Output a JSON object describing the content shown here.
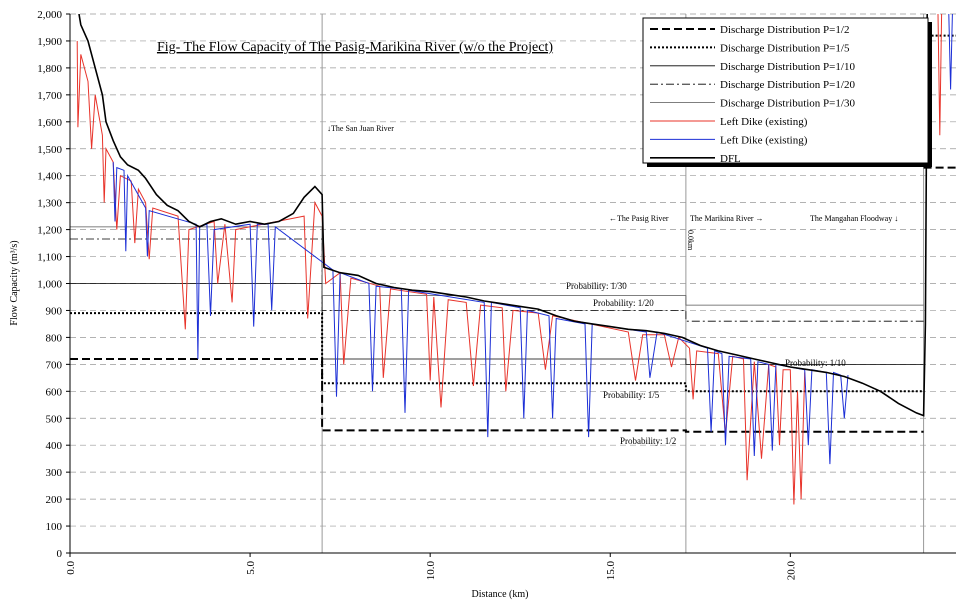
{
  "chart_data": {
    "type": "line",
    "title": "Fig- The Flow Capacity of The Pasig-Marikina River (w/o the Project)",
    "x_label": "Distance (km)",
    "y_label": "Flow Capacity (m³/s)",
    "xlim": [
      0,
      24.6
    ],
    "ylim": [
      0,
      2000
    ],
    "xticks": [
      {
        "value": 0,
        "label": "0.0"
      },
      {
        "value": 5,
        "label": "5.0"
      },
      {
        "value": 10,
        "label": "10.0"
      },
      {
        "value": 15,
        "label": "15.0"
      },
      {
        "value": 20,
        "label": "20.0"
      }
    ],
    "yticks": [
      0,
      100,
      200,
      300,
      400,
      500,
      600,
      700,
      800,
      900,
      {
        "value": 1000,
        "label": "1,000"
      },
      {
        "value": 1100,
        "label": "1,100"
      },
      {
        "value": 1200,
        "label": "1,200"
      },
      {
        "value": 1300,
        "label": "1,300"
      },
      {
        "value": 1400,
        "label": "1,400"
      },
      {
        "value": 1500,
        "label": "1,500"
      },
      {
        "value": 1600,
        "label": "1,600"
      },
      {
        "value": 1700,
        "label": "1,700"
      },
      {
        "value": 1800,
        "label": "1,800"
      },
      {
        "value": 1900,
        "label": "1,900"
      },
      {
        "value": 2000,
        "label": "2,000"
      }
    ],
    "grid": true,
    "vlines": [
      7.0,
      17.1,
      23.7
    ],
    "annotations": [
      "↓The San Juan River",
      "←The Pasig River",
      "The Marikina River →",
      "The Mangahan Floodway ↓",
      "0.0km",
      "Probability: 1/30",
      "Probability: 1/20",
      "Probability: 1/10",
      "Probability: 1/5",
      "Probability: 1/2"
    ],
    "series": [
      {
        "name": "Discharge Distribution P=1/2",
        "color": "#000000",
        "style": "dashed",
        "width": 2,
        "x": [
          0,
          7,
          7,
          17.1,
          17.1,
          23.7,
          23.7,
          23.7,
          24.6
        ],
        "values": [
          720,
          720,
          455,
          455,
          450,
          450,
          null,
          1430,
          1430
        ]
      },
      {
        "name": "Discharge Distribution P=1/5",
        "color": "#000000",
        "style": "dotted",
        "width": 2,
        "x": [
          0,
          7,
          7,
          17.1,
          17.1,
          23.7,
          23.7,
          23.7,
          24.6
        ],
        "values": [
          890,
          890,
          630,
          630,
          600,
          600,
          null,
          1920,
          1920
        ]
      },
      {
        "name": "Discharge Distribution P=1/10",
        "color": "#000000",
        "style": "solid",
        "width": 0.8,
        "x": [
          0,
          7,
          7,
          17.1,
          17.1,
          23.7
        ],
        "values": [
          1000,
          1000,
          720,
          720,
          700,
          700
        ]
      },
      {
        "name": "Discharge Distribution P=1/20",
        "color": "#000000",
        "style": "dashdot",
        "width": 0.8,
        "x": [
          0,
          7,
          7,
          17.1,
          17.1,
          23.7
        ],
        "values": [
          1165,
          1165,
          900,
          900,
          860,
          860
        ]
      },
      {
        "name": "Discharge Distribution P=1/30",
        "color": "#555555",
        "style": "solid",
        "width": 0.8,
        "x": [
          0,
          7,
          7,
          17.1,
          17.1,
          23.7
        ],
        "values": [
          1210,
          1210,
          955,
          955,
          920,
          920
        ]
      },
      {
        "name": "Left Dike (existing)",
        "color": "#e8332a",
        "style": "solid",
        "width": 1,
        "x": [
          0.2,
          0.22,
          0.3,
          0.5,
          0.6,
          0.7,
          0.9,
          0.95,
          1.0,
          1.2,
          1.3,
          1.4,
          1.7,
          1.8,
          1.9,
          2.1,
          2.2,
          2.3,
          3.0,
          3.2,
          3.3,
          4.0,
          4.1,
          4.3,
          4.5,
          4.6,
          6.5,
          6.6,
          6.8,
          7.0,
          7.1,
          7.5,
          7.6,
          7.8,
          8.6,
          8.7,
          8.9,
          9.9,
          10.0,
          10.1,
          10.3,
          10.5,
          11.0,
          11.2,
          11.4,
          12.0,
          12.1,
          12.3,
          13.0,
          13.2,
          13.4,
          15.5,
          15.7,
          15.9,
          16.5,
          16.7,
          16.9,
          17.2,
          17.3,
          17.4,
          18.0,
          18.2,
          18.4,
          18.7,
          18.8,
          19.0,
          19.2,
          19.4,
          19.6,
          19.7,
          19.8,
          20.0,
          20.1,
          20.2,
          20.3,
          20.4,
          20.4,
          24.1,
          24.15,
          24.2
        ],
        "values": [
          1900,
          1580,
          1850,
          1750,
          1500,
          1700,
          1550,
          1300,
          1500,
          1450,
          1200,
          1400,
          1380,
          1150,
          1350,
          1300,
          1090,
          1280,
          1250,
          830,
          1200,
          1230,
          1000,
          1220,
          930,
          1200,
          1250,
          870,
          1300,
          1250,
          1000,
          1040,
          700,
          1020,
          990,
          650,
          980,
          960,
          640,
          950,
          540,
          940,
          930,
          620,
          920,
          910,
          600,
          900,
          890,
          680,
          880,
          820,
          640,
          810,
          810,
          690,
          800,
          760,
          570,
          750,
          740,
          440,
          730,
          720,
          270,
          710,
          350,
          700,
          690,
          400,
          680,
          680,
          180,
          600,
          200,
          670,
          null,
          2000,
          1550,
          2000
        ]
      },
      {
        "name": "Left Dike (existing)",
        "color": "#1c2fd6",
        "style": "solid",
        "width": 1,
        "x": [
          1.2,
          1.25,
          1.3,
          1.5,
          1.55,
          1.6,
          2.1,
          2.15,
          2.2,
          3.5,
          3.55,
          3.6,
          3.8,
          3.9,
          4.0,
          5.0,
          5.1,
          5.2,
          5.5,
          5.6,
          5.7,
          7.3,
          7.4,
          7.5,
          8.3,
          8.4,
          8.5,
          9.2,
          9.3,
          9.4,
          11.5,
          11.6,
          11.7,
          12.5,
          12.6,
          12.7,
          13.3,
          13.4,
          13.5,
          14.3,
          14.4,
          14.5,
          16.0,
          16.1,
          16.3,
          17.7,
          17.8,
          17.9,
          18.1,
          18.2,
          18.3,
          18.9,
          19.0,
          19.1,
          19.4,
          19.5,
          19.6,
          20.4,
          20.5,
          20.6,
          21.0,
          21.1,
          21.2,
          21.4,
          21.5,
          21.6,
          21.6,
          24.4,
          24.45,
          24.5
        ],
        "values": [
          1450,
          1230,
          1430,
          1420,
          1120,
          1400,
          1280,
          1100,
          1270,
          1220,
          720,
          1210,
          1220,
          880,
          1200,
          1220,
          840,
          1220,
          1220,
          900,
          1210,
          1050,
          580,
          1040,
          1000,
          600,
          990,
          980,
          520,
          975,
          930,
          430,
          930,
          910,
          500,
          900,
          880,
          500,
          870,
          850,
          430,
          850,
          820,
          650,
          820,
          760,
          450,
          750,
          740,
          400,
          730,
          720,
          360,
          710,
          700,
          380,
          700,
          680,
          400,
          680,
          670,
          330,
          670,
          660,
          500,
          660,
          null,
          2000,
          1720,
          2000
        ]
      },
      {
        "name": "DFL",
        "color": "#000000",
        "style": "solid",
        "width": 1.6,
        "x": [
          0.25,
          0.3,
          0.5,
          0.7,
          0.9,
          1.0,
          1.2,
          1.4,
          1.6,
          1.9,
          2.1,
          2.4,
          2.7,
          3.0,
          3.3,
          3.6,
          3.9,
          4.2,
          4.6,
          5.0,
          5.4,
          5.8,
          6.2,
          6.5,
          6.8,
          7.0,
          7.05,
          7.5,
          8.0,
          8.5,
          9.0,
          9.5,
          10.0,
          10.5,
          11.0,
          11.5,
          12.0,
          12.5,
          13.0,
          13.5,
          14.0,
          14.5,
          15.0,
          15.5,
          16.0,
          16.5,
          17.0,
          17.5,
          18.0,
          18.5,
          19.0,
          19.5,
          20.0,
          20.5,
          21.0,
          21.5,
          22.0,
          22.5,
          23.0,
          23.5,
          23.7,
          23.75,
          23.8
        ],
        "values": [
          2000,
          1960,
          1900,
          1800,
          1700,
          1600,
          1530,
          1470,
          1440,
          1420,
          1390,
          1330,
          1290,
          1270,
          1230,
          1210,
          1230,
          1240,
          1220,
          1230,
          1220,
          1230,
          1260,
          1320,
          1360,
          1330,
          1060,
          1040,
          1030,
          1000,
          985,
          975,
          970,
          960,
          950,
          935,
          925,
          915,
          905,
          880,
          860,
          850,
          840,
          830,
          825,
          815,
          800,
          770,
          750,
          735,
          720,
          705,
          690,
          680,
          670,
          655,
          630,
          600,
          555,
          520,
          510,
          850,
          2000
        ]
      }
    ]
  }
}
